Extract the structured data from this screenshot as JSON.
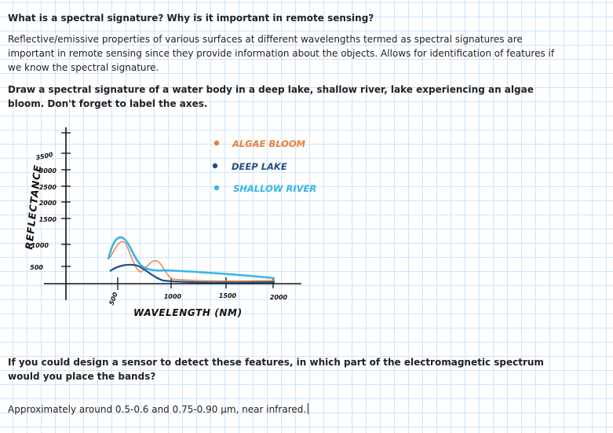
{
  "question1": "What is a spectral signature? Why is it important in remote sensing?",
  "answer1": "Reflective/emissive properties of various surfaces at different wavelengths termed as spectral signatures are important in remote sensing since they provide information about the objects. Allows for identification of features if we know the spectral signature.",
  "question2": "Draw a spectral signature of a water body in a deep lake, shallow river, lake experiencing an algae bloom. Don't forget to label the axes.",
  "sketch": {
    "y_axis_label": "REFLECTANCE",
    "x_axis_label": "WAVELENGTH (NM)",
    "y_ticks": [
      "500",
      "1000",
      "1500",
      "2000",
      "2500",
      "3000",
      "3500"
    ],
    "x_ticks": [
      "500",
      "1000",
      "1500",
      "2000"
    ],
    "legend": [
      {
        "label": "ALGAE BLOOM",
        "color": "#e8803a"
      },
      {
        "label": "DEEP LAKE",
        "color": "#1f4f86"
      },
      {
        "label": "SHALLOW RIVER",
        "color": "#39b4e6"
      }
    ]
  },
  "question3": "If you could design a sensor to detect these features, in which part of the electromagnetic spectrum would you place the bands?",
  "answer3": "Approximately around 0.5-0.6 and 0.75-0.90 µm, near infrared."
}
